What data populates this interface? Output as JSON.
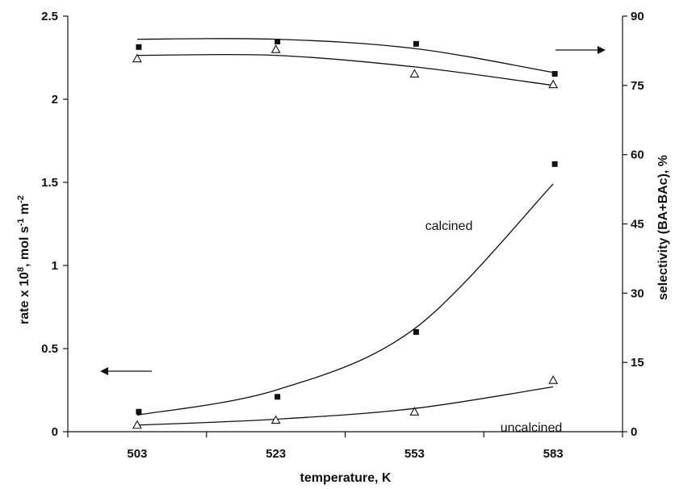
{
  "chart_data": {
    "type": "scatter",
    "title": "",
    "x": [
      503,
      523,
      553,
      583
    ],
    "xlabel": "temperature, K",
    "xticks": [
      "503",
      "523",
      "553",
      "583"
    ],
    "y_left": {
      "label_parts": [
        "rate x 10",
        "8",
        ", mol s",
        "-1",
        " m",
        "-2"
      ],
      "range": [
        0,
        2.5
      ],
      "ticks": [
        "0",
        "0.5",
        "1",
        "1.5",
        "2",
        "2.5"
      ]
    },
    "y_right": {
      "label": "selectivity (BA+BAc), %",
      "range": [
        0,
        90
      ],
      "ticks": [
        "0",
        "15",
        "30",
        "45",
        "60",
        "75",
        "90"
      ]
    },
    "series": [
      {
        "name": "calcined",
        "marker": "filled-square",
        "axis": "left",
        "values": [
          0.12,
          0.21,
          0.6,
          1.61
        ]
      },
      {
        "name": "uncalcined",
        "marker": "open-triangle",
        "axis": "left",
        "values": [
          0.04,
          0.07,
          0.12,
          0.31
        ]
      },
      {
        "marker": "filled-square",
        "axis": "right",
        "values": [
          83.3,
          84.5,
          84.0,
          77.5
        ]
      },
      {
        "marker": "open-triangle",
        "axis": "right",
        "values": [
          80.8,
          82.8,
          77.5,
          75.2
        ]
      }
    ],
    "fits": [
      {
        "axis": "left",
        "points": [
          [
            503,
            0.1
          ],
          [
            523,
            0.25
          ],
          [
            553,
            0.62
          ],
          [
            583,
            1.49
          ]
        ]
      },
      {
        "axis": "left",
        "points": [
          [
            503,
            0.04
          ],
          [
            523,
            0.075
          ],
          [
            553,
            0.14
          ],
          [
            583,
            0.27
          ]
        ]
      },
      {
        "axis": "right",
        "points": [
          [
            503,
            85.0
          ],
          [
            523,
            85.0
          ],
          [
            553,
            83.0
          ],
          [
            583,
            77.8
          ]
        ]
      },
      {
        "axis": "right",
        "points": [
          [
            503,
            81.5
          ],
          [
            523,
            81.5
          ],
          [
            553,
            79.0
          ],
          [
            583,
            75.0
          ]
        ]
      }
    ],
    "annotations": [
      "calcined",
      "uncalcined"
    ],
    "legend": "none",
    "grid": false
  }
}
